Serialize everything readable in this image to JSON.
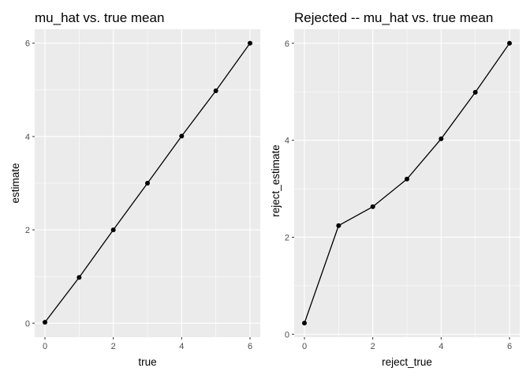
{
  "chart_data": [
    {
      "type": "line",
      "title": "mu_hat vs. true mean",
      "xlabel": "true",
      "ylabel": "estimate",
      "xlim": [
        -0.3,
        6.3
      ],
      "ylim": [
        -0.3,
        6.3
      ],
      "xticks": [
        0,
        2,
        4,
        6
      ],
      "yticks": [
        0,
        2,
        4,
        6
      ],
      "grid": true,
      "background": "#ebebeb",
      "color": "#000000",
      "x": [
        0,
        1,
        2,
        3,
        4,
        5,
        6
      ],
      "y": [
        0.02,
        0.98,
        2.0,
        3.0,
        4.01,
        4.98,
        6.0
      ]
    },
    {
      "type": "line",
      "title": "Rejected -- mu_hat vs. true mean",
      "xlabel": "reject_true",
      "ylabel": "reject_estimate",
      "xlim": [
        -0.3,
        6.3
      ],
      "ylim": [
        -0.06,
        6.29
      ],
      "xticks": [
        0,
        2,
        4,
        6
      ],
      "yticks": [
        0,
        2,
        4,
        6
      ],
      "grid": true,
      "background": "#ebebeb",
      "color": "#000000",
      "x": [
        0,
        1,
        2,
        3,
        4,
        5,
        6
      ],
      "y": [
        0.23,
        2.24,
        2.63,
        3.2,
        4.03,
        4.99,
        6.0
      ]
    }
  ]
}
